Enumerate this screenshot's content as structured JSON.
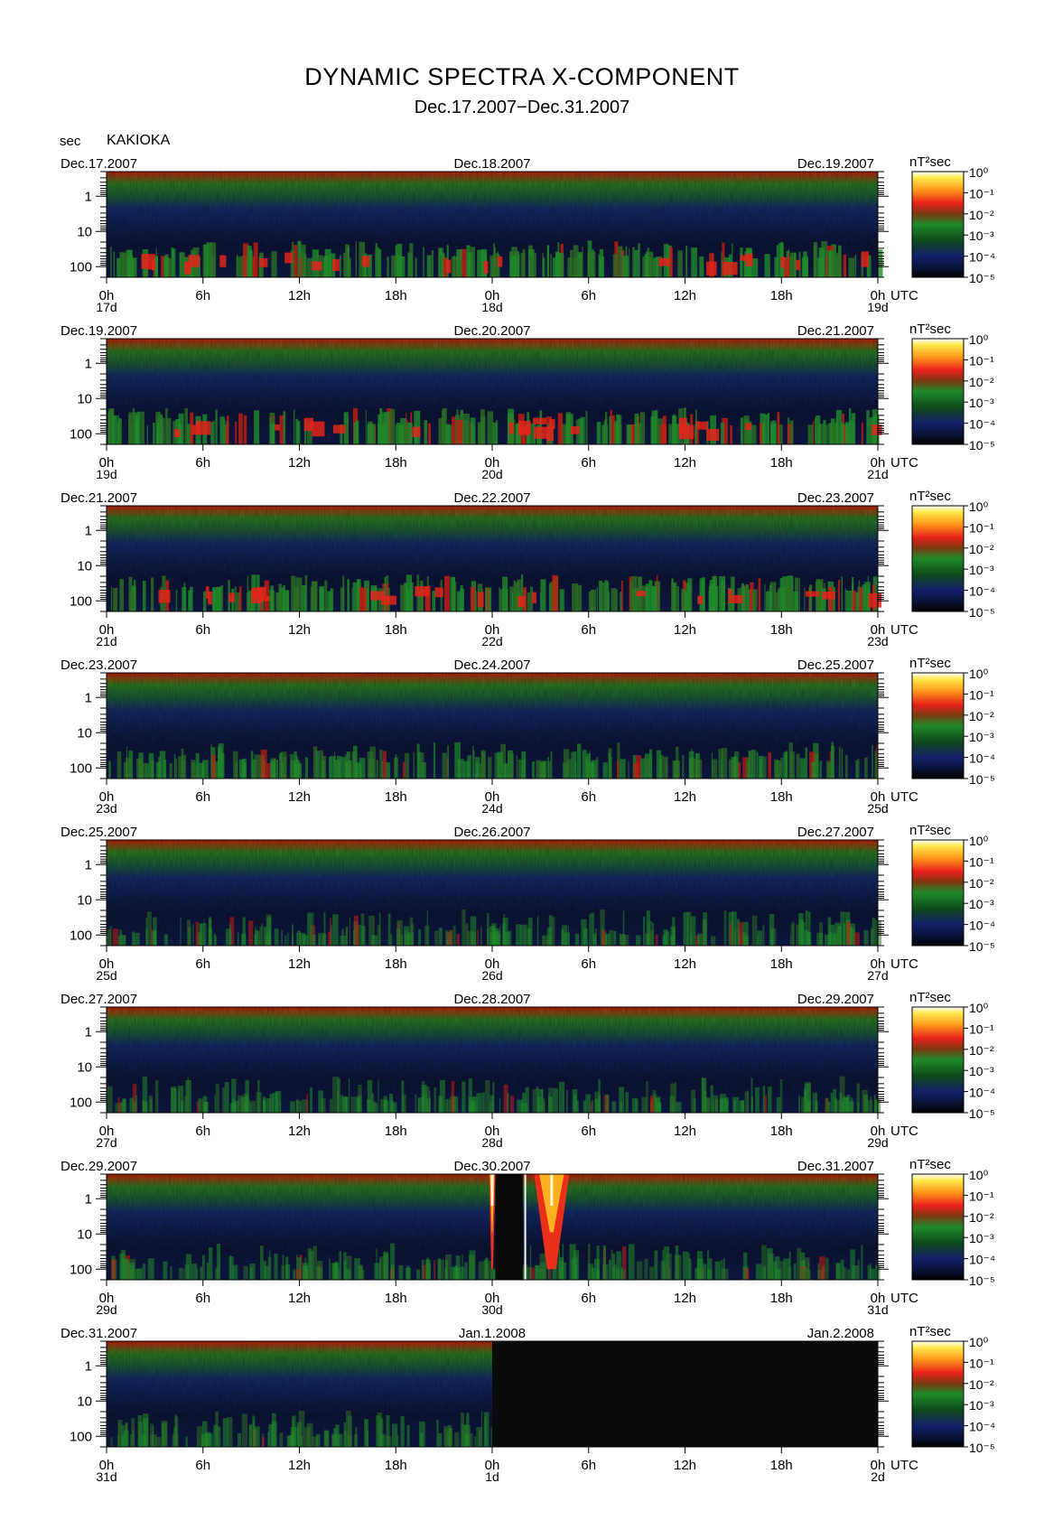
{
  "title": "DYNAMIC SPECTRA X-COMPONENT",
  "subtitle": "Dec.17.2007−Dec.31.2007",
  "y_unit_label": "sec",
  "station": "KAKIOKA",
  "colorbar_unit": "nT²sec",
  "colorbar_ticks": [
    "10⁰",
    "10⁻¹",
    "10⁻²",
    "10⁻³",
    "10⁻⁴",
    "10⁻⁵"
  ],
  "x_axis_unit": "UTC",
  "colors": {
    "background_dark": "#0a0a0a",
    "low_band_blue": "#16206a",
    "mid_band_green": "#1f8a2a",
    "high_band_red": "#d22010",
    "peak_yellow": "#ffe84a"
  },
  "chart_data": [
    {
      "type": "heatmap",
      "date_left": "Dec.17.2007",
      "date_mid": "Dec.18.2007",
      "date_right": "Dec.19.2007",
      "x_ticks": [
        "0h",
        "6h",
        "12h",
        "18h",
        "0h",
        "6h",
        "12h",
        "18h",
        "0h"
      ],
      "day_labels": [
        "17d",
        "18d",
        "19d"
      ],
      "y_ticks": [
        "1",
        "10",
        "100"
      ],
      "color_scale": [
        "10⁻⁵",
        "10⁰"
      ],
      "activity": "moderate",
      "no_data_from_hour": null
    },
    {
      "type": "heatmap",
      "date_left": "Dec.19.2007",
      "date_mid": "Dec.20.2007",
      "date_right": "Dec.21.2007",
      "x_ticks": [
        "0h",
        "6h",
        "12h",
        "18h",
        "0h",
        "6h",
        "12h",
        "18h",
        "0h"
      ],
      "day_labels": [
        "19d",
        "20d",
        "21d"
      ],
      "y_ticks": [
        "1",
        "10",
        "100"
      ],
      "color_scale": [
        "10⁻⁵",
        "10⁰"
      ],
      "activity": "moderate",
      "no_data_from_hour": null
    },
    {
      "type": "heatmap",
      "date_left": "Dec.21.2007",
      "date_mid": "Dec.22.2007",
      "date_right": "Dec.23.2007",
      "x_ticks": [
        "0h",
        "6h",
        "12h",
        "18h",
        "0h",
        "6h",
        "12h",
        "18h",
        "0h"
      ],
      "day_labels": [
        "21d",
        "22d",
        "23d"
      ],
      "y_ticks": [
        "1",
        "10",
        "100"
      ],
      "color_scale": [
        "10⁻⁵",
        "10⁰"
      ],
      "activity": "moderate",
      "no_data_from_hour": null
    },
    {
      "type": "heatmap",
      "date_left": "Dec.23.2007",
      "date_mid": "Dec.24.2007",
      "date_right": "Dec.25.2007",
      "x_ticks": [
        "0h",
        "6h",
        "12h",
        "18h",
        "0h",
        "6h",
        "12h",
        "18h",
        "0h"
      ],
      "day_labels": [
        "23d",
        "24d",
        "25d"
      ],
      "y_ticks": [
        "1",
        "10",
        "100"
      ],
      "color_scale": [
        "10⁻⁵",
        "10⁰"
      ],
      "activity": "low",
      "no_data_from_hour": null
    },
    {
      "type": "heatmap",
      "date_left": "Dec.25.2007",
      "date_mid": "Dec.26.2007",
      "date_right": "Dec.27.2007",
      "x_ticks": [
        "0h",
        "6h",
        "12h",
        "18h",
        "0h",
        "6h",
        "12h",
        "18h",
        "0h"
      ],
      "day_labels": [
        "25d",
        "26d",
        "27d"
      ],
      "y_ticks": [
        "1",
        "10",
        "100"
      ],
      "color_scale": [
        "10⁻⁵",
        "10⁰"
      ],
      "activity": "quiet",
      "no_data_from_hour": null
    },
    {
      "type": "heatmap",
      "date_left": "Dec.27.2007",
      "date_mid": "Dec.28.2007",
      "date_right": "Dec.29.2007",
      "x_ticks": [
        "0h",
        "6h",
        "12h",
        "18h",
        "0h",
        "6h",
        "12h",
        "18h",
        "0h"
      ],
      "day_labels": [
        "27d",
        "28d",
        "29d"
      ],
      "y_ticks": [
        "1",
        "10",
        "100"
      ],
      "color_scale": [
        "10⁻⁵",
        "10⁰"
      ],
      "activity": "quiet",
      "no_data_from_hour": null
    },
    {
      "type": "heatmap",
      "date_left": "Dec.29.2007",
      "date_mid": "Dec.30.2007",
      "date_right": "Dec.31.2007",
      "x_ticks": [
        "0h",
        "6h",
        "12h",
        "18h",
        "0h",
        "6h",
        "12h",
        "18h",
        "0h"
      ],
      "day_labels": [
        "29d",
        "30d",
        "31d"
      ],
      "y_ticks": [
        "1",
        "10",
        "100"
      ],
      "color_scale": [
        "10⁻⁵",
        "10⁰"
      ],
      "activity": "quiet",
      "no_data_from_hour": null,
      "events": [
        {
          "start_hour": 23.8,
          "end_hour": 24.2,
          "kind": "spike"
        },
        {
          "start_hour": 24.2,
          "end_hour": 25.9,
          "kind": "gap"
        },
        {
          "start_hour": 26.0,
          "end_hour": 26.1,
          "kind": "white-line"
        },
        {
          "start_hour": 26.6,
          "end_hour": 28.8,
          "kind": "spike"
        }
      ]
    },
    {
      "type": "heatmap",
      "date_left": "Dec.31.2007",
      "date_mid": "Jan.1.2008",
      "date_right": "Jan.2.2008",
      "x_ticks": [
        "0h",
        "6h",
        "12h",
        "18h",
        "0h",
        "6h",
        "12h",
        "18h",
        "0h"
      ],
      "day_labels": [
        "31d",
        "1d",
        "2d"
      ],
      "y_ticks": [
        "1",
        "10",
        "100"
      ],
      "color_scale": [
        "10⁻⁵",
        "10⁰"
      ],
      "activity": "quiet",
      "no_data_from_hour": 24
    }
  ]
}
